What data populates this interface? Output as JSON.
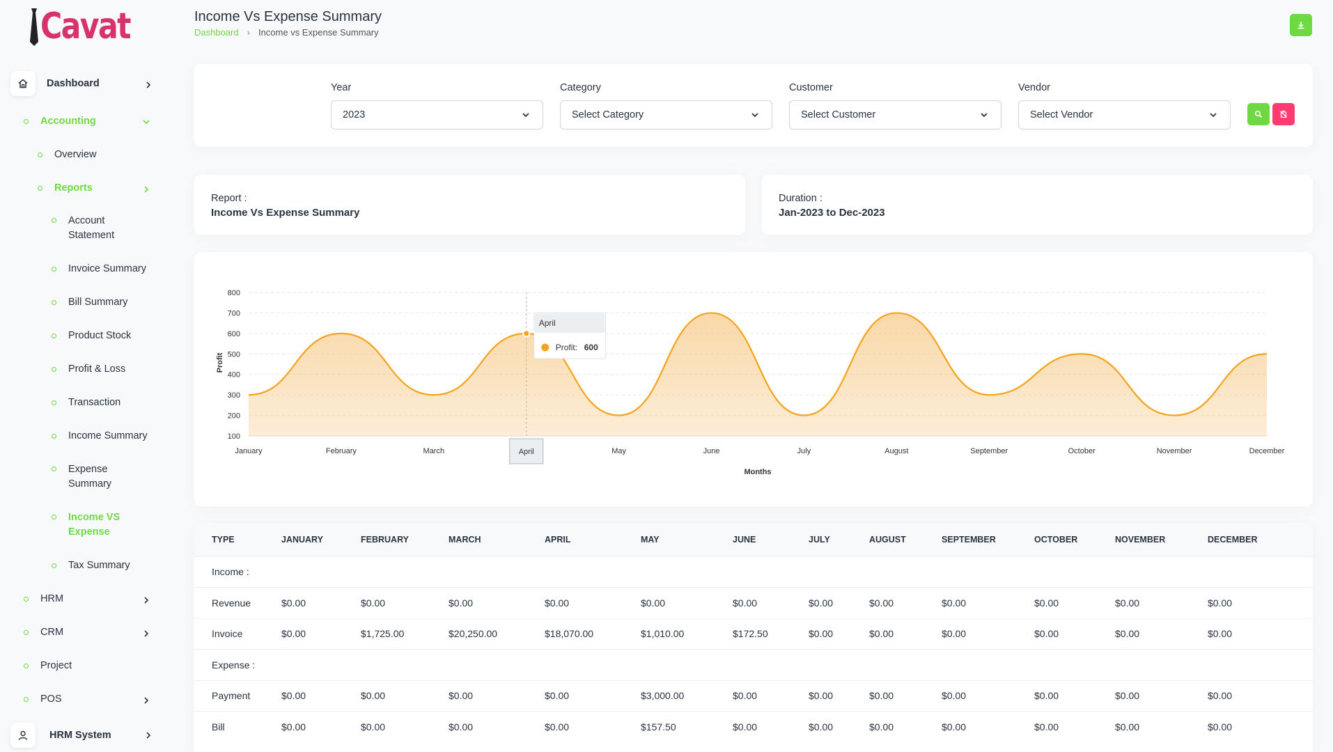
{
  "brand": {
    "name": "Cavat",
    "color": "#d6336c"
  },
  "colors": {
    "accent": "#6fd943",
    "danger": "#ff3a6e",
    "chart": "#f7a21b"
  },
  "page": {
    "title": "Income Vs Expense Summary",
    "breadcrumb": {
      "home": "Dashboard",
      "current": "Income vs Expense Summary"
    }
  },
  "sidebar": {
    "dashboard": "Dashboard",
    "accounting": "Accounting",
    "overview": "Overview",
    "reports": "Reports",
    "report_items": {
      "account_statement_1": "Account",
      "account_statement_2": "Statement",
      "invoice_summary": "Invoice Summary",
      "bill_summary": "Bill Summary",
      "product_stock": "Product Stock",
      "profit_loss": "Profit & Loss",
      "transaction": "Transaction",
      "income_summary": "Income Summary",
      "expense_summary_1": "Expense",
      "expense_summary_2": "Summary",
      "income_vs_expense_1": "Income VS",
      "income_vs_expense_2": "Expense",
      "tax_summary": "Tax Summary"
    },
    "hrm": "HRM",
    "crm": "CRM",
    "project": "Project",
    "pos": "POS",
    "hrm_system": "HRM System"
  },
  "filters": {
    "year": {
      "label": "Year",
      "value": "2023"
    },
    "category": {
      "label": "Category",
      "value": "Select Category"
    },
    "customer": {
      "label": "Customer",
      "value": "Select Customer"
    },
    "vendor": {
      "label": "Vendor",
      "value": "Select Vendor"
    }
  },
  "report": {
    "report_label": "Report :",
    "report_value": "Income Vs Expense Summary",
    "duration_label": "Duration :",
    "duration_value": "Jan-2023 to Dec-2023"
  },
  "chart_data": {
    "type": "area",
    "categories": [
      "January",
      "February",
      "March",
      "April",
      "May",
      "June",
      "July",
      "August",
      "September",
      "October",
      "November",
      "December"
    ],
    "series": [
      {
        "name": "Profit",
        "values": [
          300,
          600,
          300,
          600,
          200,
          700,
          200,
          700,
          300,
          500,
          200,
          500
        ]
      }
    ],
    "xlabel": "Months",
    "ylabel": "Profit",
    "ylim": [
      100,
      800
    ],
    "yticks": [
      100,
      200,
      300,
      400,
      500,
      600,
      700,
      800
    ],
    "grid": true,
    "tooltip": {
      "title": "April",
      "label": "Profit:",
      "value": "600"
    }
  },
  "table": {
    "headers": [
      "Type",
      "January",
      "February",
      "March",
      "April",
      "May",
      "June",
      "July",
      "August",
      "September",
      "October",
      "November",
      "December"
    ],
    "sections": [
      {
        "title": "Income :",
        "rows": [
          {
            "type": "Revenue",
            "values": [
              "$0.00",
              "$0.00",
              "$0.00",
              "$0.00",
              "$0.00",
              "$0.00",
              "$0.00",
              "$0.00",
              "$0.00",
              "$0.00",
              "$0.00",
              "$0.00"
            ]
          },
          {
            "type": "Invoice",
            "values": [
              "$0.00",
              "$1,725.00",
              "$20,250.00",
              "$18,070.00",
              "$1,010.00",
              "$172.50",
              "$0.00",
              "$0.00",
              "$0.00",
              "$0.00",
              "$0.00",
              "$0.00"
            ]
          }
        ]
      },
      {
        "title": "Expense :",
        "rows": [
          {
            "type": "Payment",
            "values": [
              "$0.00",
              "$0.00",
              "$0.00",
              "$0.00",
              "$3,000.00",
              "$0.00",
              "$0.00",
              "$0.00",
              "$0.00",
              "$0.00",
              "$0.00",
              "$0.00"
            ]
          },
          {
            "type": "Bill",
            "values": [
              "$0.00",
              "$0.00",
              "$0.00",
              "$0.00",
              "$157.50",
              "$0.00",
              "$0.00",
              "$0.00",
              "$0.00",
              "$0.00",
              "$0.00",
              "$0.00"
            ]
          }
        ]
      }
    ]
  }
}
